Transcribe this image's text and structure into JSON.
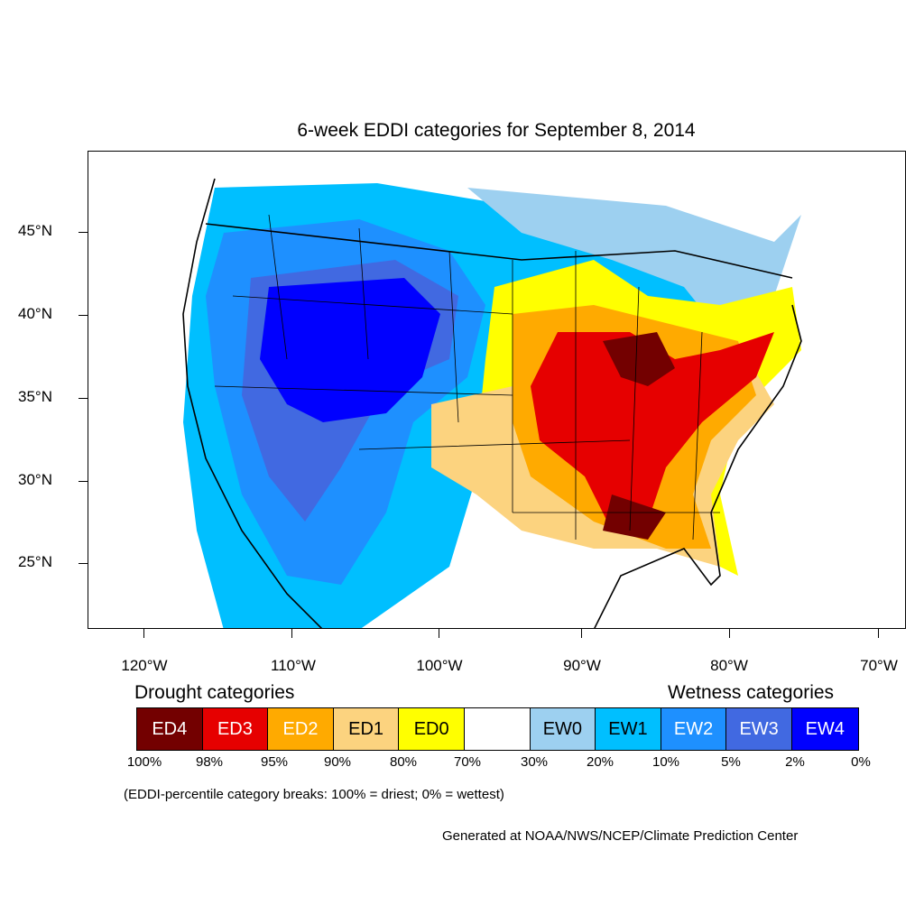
{
  "title": "6-week EDDI categories for September 8, 2014",
  "lat_labels": [
    "45°N",
    "40°N",
    "35°N",
    "30°N",
    "25°N"
  ],
  "lon_labels": [
    "120°W",
    "110°W",
    "100°W",
    "90°W",
    "80°W",
    "70°W"
  ],
  "legend": {
    "drought_heading": "Drought categories",
    "wetness_heading": "Wetness categories",
    "categories": [
      {
        "label": "ED4",
        "color": "#730000",
        "text_color": "#ffffff"
      },
      {
        "label": "ED3",
        "color": "#e60000",
        "text_color": "#ffffff"
      },
      {
        "label": "ED2",
        "color": "#ffaa00",
        "text_color": "#ffffff"
      },
      {
        "label": "ED1",
        "color": "#fcd37f",
        "text_color": "#000000"
      },
      {
        "label": "ED0",
        "color": "#ffff00",
        "text_color": "#000000"
      },
      {
        "label": "",
        "color": "#ffffff",
        "text_color": "#000000"
      },
      {
        "label": "EW0",
        "color": "#9dd0f0",
        "text_color": "#000000"
      },
      {
        "label": "EW1",
        "color": "#00bfff",
        "text_color": "#000000"
      },
      {
        "label": "EW2",
        "color": "#1e90ff",
        "text_color": "#ffffff"
      },
      {
        "label": "EW3",
        "color": "#4169e1",
        "text_color": "#ffffff"
      },
      {
        "label": "EW4",
        "color": "#0000ff",
        "text_color": "#ffffff"
      }
    ],
    "percentiles": [
      "100%",
      "98%",
      "95%",
      "90%",
      "80%",
      "70%",
      "30%",
      "20%",
      "10%",
      "5%",
      "2%",
      "0%"
    ]
  },
  "footnote": "(EDDI-percentile category breaks: 100% = driest; 0% = wettest)",
  "credit": "Generated at NOAA/NWS/NCEP/Climate Prediction Center"
}
